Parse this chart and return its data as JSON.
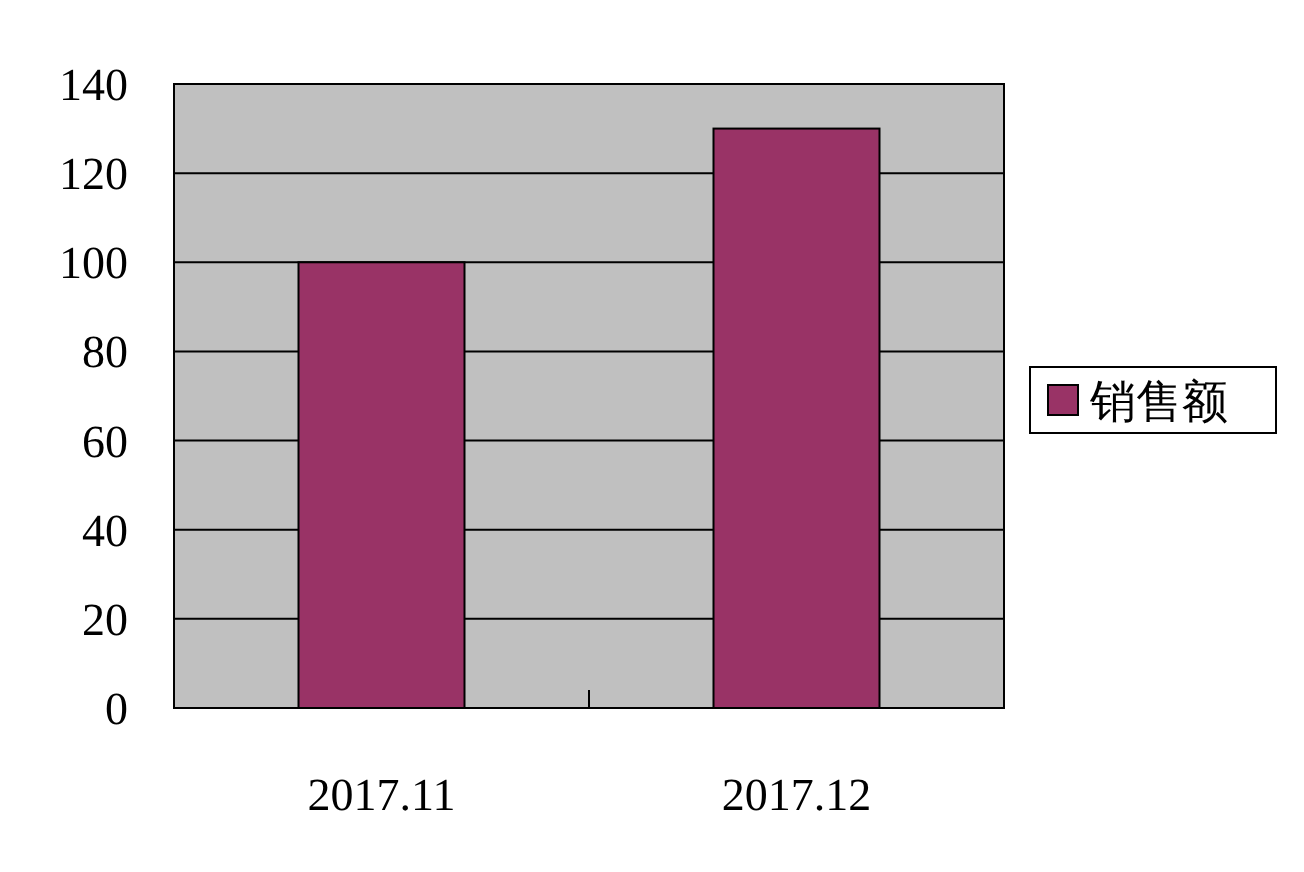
{
  "chart_data": {
    "type": "bar",
    "categories": [
      "2017.11",
      "2017.12"
    ],
    "series": [
      {
        "name": "销售额",
        "color": "#993366",
        "values": [
          100,
          130
        ]
      }
    ],
    "ylim": [
      0,
      140
    ],
    "yticks": [
      0,
      20,
      40,
      60,
      80,
      100,
      120,
      140
    ],
    "grid": "y",
    "legend": "right"
  }
}
